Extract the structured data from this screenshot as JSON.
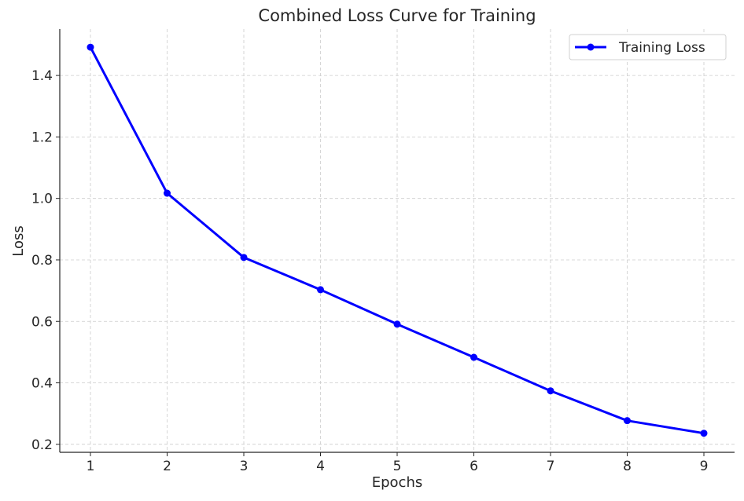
{
  "chart_data": {
    "type": "line",
    "title": "Combined Loss Curve for Training",
    "xlabel": "Epochs",
    "ylabel": "Loss",
    "x": [
      1,
      2,
      3,
      4,
      5,
      6,
      7,
      8,
      9
    ],
    "series": [
      {
        "name": "Training Loss",
        "color": "#0000ff",
        "marker": "circle",
        "values": [
          1.492,
          1.017,
          0.808,
          0.703,
          0.591,
          0.483,
          0.374,
          0.277,
          0.236
        ]
      }
    ],
    "xlim": [
      0.6,
      9.4
    ],
    "ylim": [
      0.174,
      1.551
    ],
    "xticks": [
      1,
      2,
      3,
      4,
      5,
      6,
      7,
      8,
      9
    ],
    "xtick_labels": [
      "1",
      "2",
      "3",
      "4",
      "5",
      "6",
      "7",
      "8",
      "9"
    ],
    "yticks": [
      0.2,
      0.4,
      0.6,
      0.8,
      1.0,
      1.2,
      1.4
    ],
    "ytick_labels": [
      "0.2",
      "0.4",
      "0.6",
      "0.8",
      "1.0",
      "1.2",
      "1.4"
    ],
    "grid": true,
    "legend_position": "top-right"
  }
}
